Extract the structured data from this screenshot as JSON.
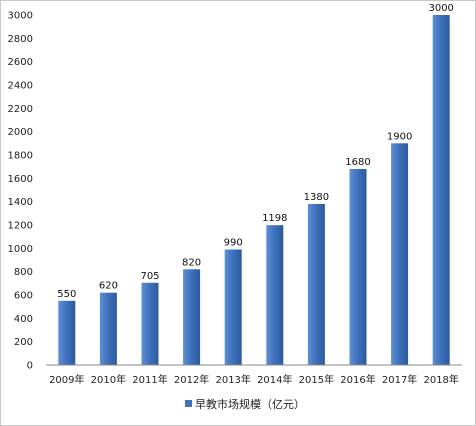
{
  "chart_data": {
    "type": "bar",
    "categories": [
      "2009年",
      "2010年",
      "2011年",
      "2012年",
      "2013年",
      "2014年",
      "2015年",
      "2016年",
      "2017年",
      "2018年"
    ],
    "values": [
      550,
      620,
      705,
      820,
      990,
      1198,
      1380,
      1680,
      1900,
      3000
    ],
    "data_labels": [
      "550",
      "620",
      "705",
      "820",
      "990",
      "1198",
      "1380",
      "1680",
      "1900",
      "3000"
    ],
    "series": [
      {
        "name": "早教市场规模（亿元）",
        "values": [
          550,
          620,
          705,
          820,
          990,
          1198,
          1380,
          1680,
          1900,
          3000
        ]
      }
    ],
    "ylim": [
      0,
      3000
    ],
    "yticks": [
      "0",
      "200",
      "400",
      "600",
      "800",
      "1000",
      "1200",
      "1400",
      "1600",
      "1800",
      "2000",
      "2200",
      "2400",
      "2600",
      "2800",
      "3000"
    ],
    "grid": false,
    "legend_position": "bottom",
    "bar_color": "#3f72bd"
  }
}
